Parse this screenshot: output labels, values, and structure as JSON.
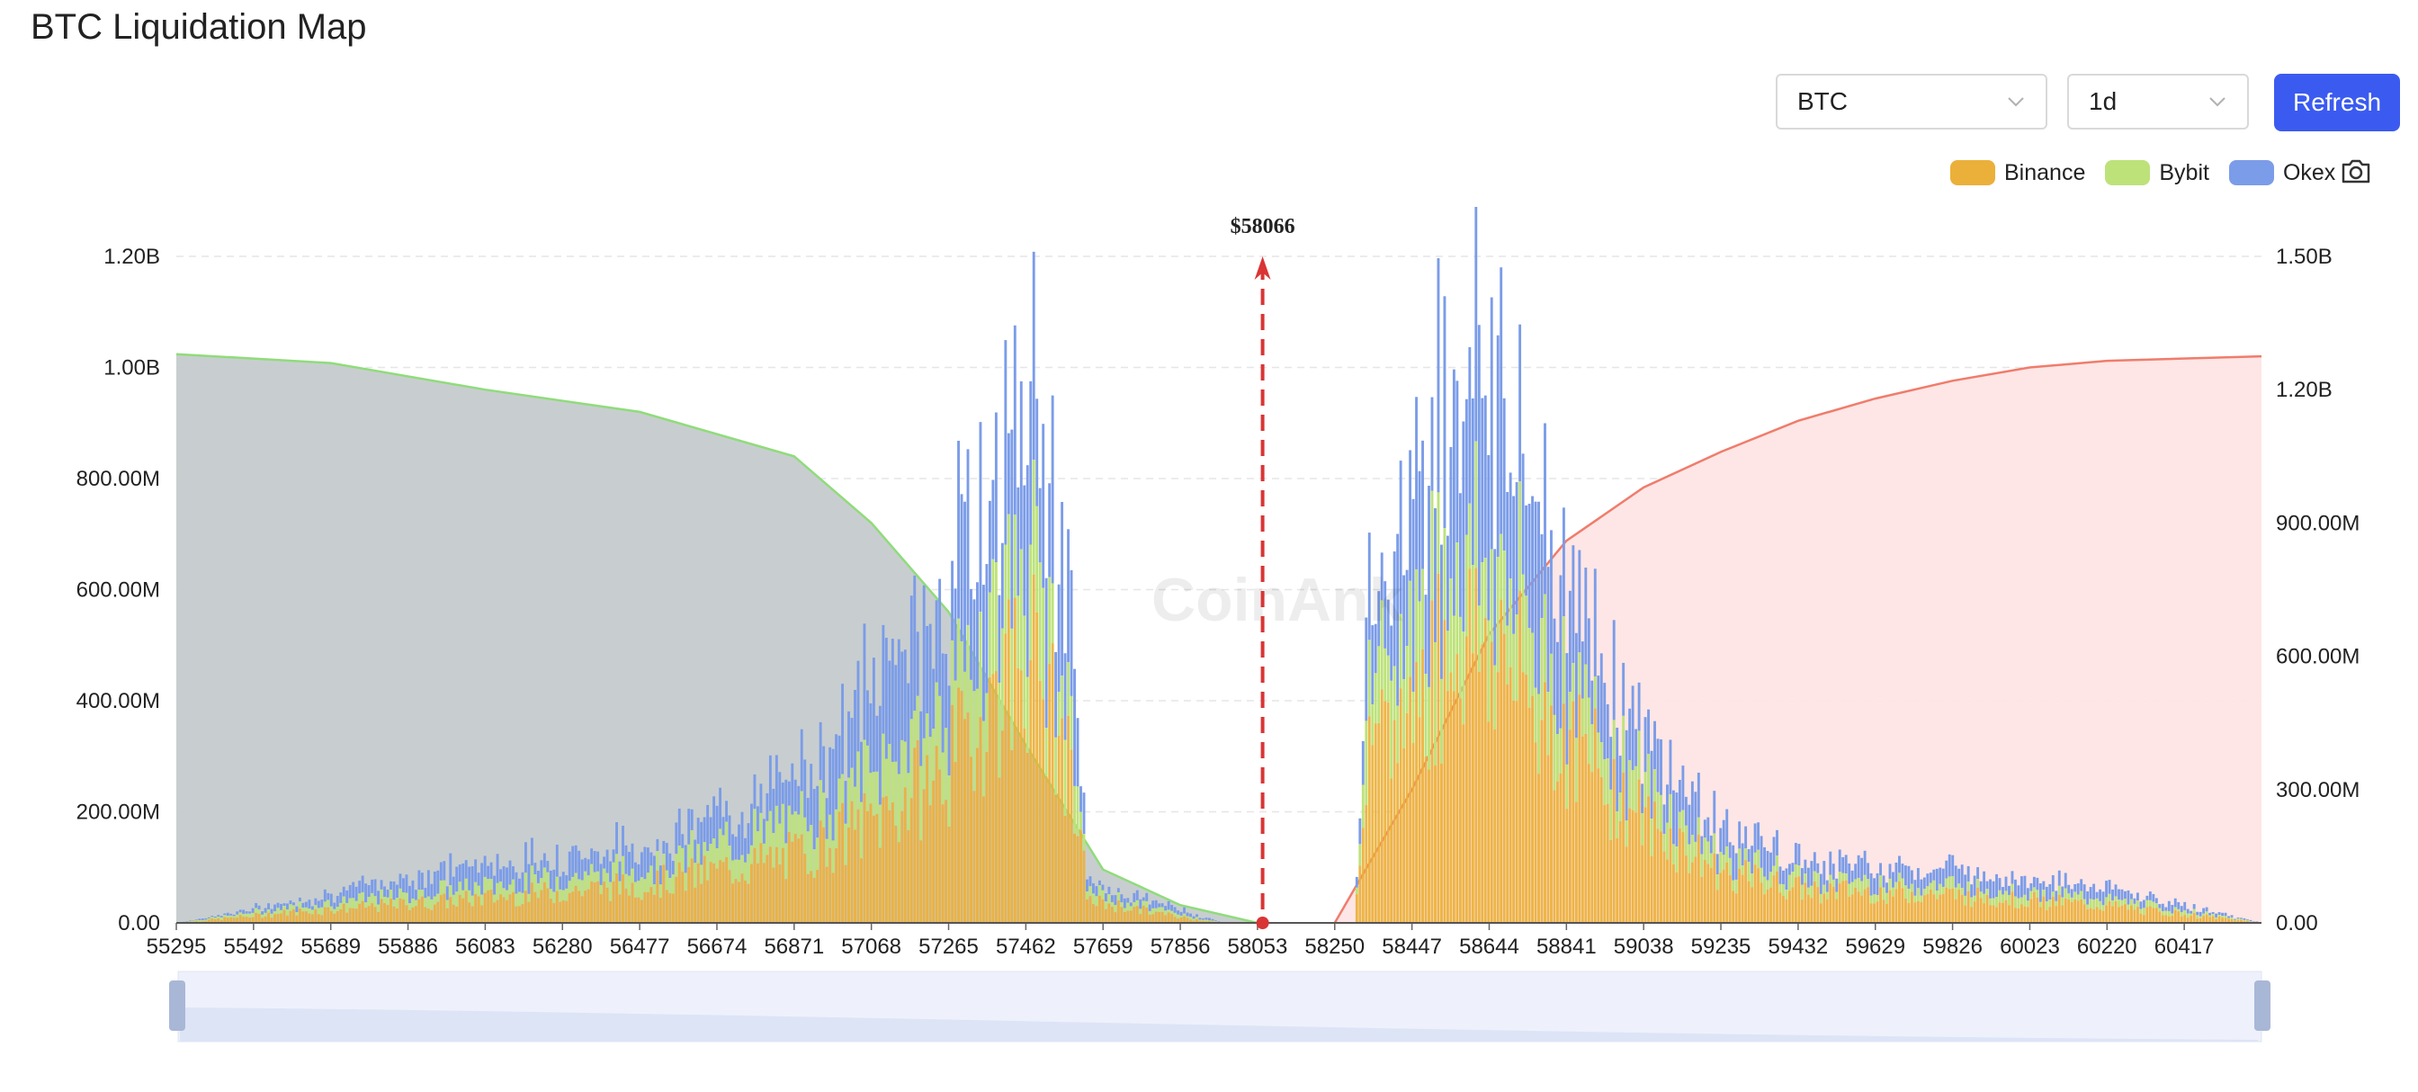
{
  "page": {
    "title": "BTC Liquidation Map"
  },
  "controls": {
    "symbol_select": {
      "value": "BTC"
    },
    "period_select": {
      "value": "1d"
    },
    "refresh_label": "Refresh"
  },
  "legend": [
    {
      "name": "Binance",
      "color": "#ebb03a"
    },
    {
      "name": "Bybit",
      "color": "#bde27a"
    },
    {
      "name": "Okex",
      "color": "#7b9ce8"
    }
  ],
  "chart_data": {
    "type": "bar",
    "title": "",
    "watermark": "CoinAnk",
    "xlabel": "",
    "ylabel": "",
    "x_tick_labels": [
      "55295",
      "55492",
      "55689",
      "55886",
      "56083",
      "56280",
      "56477",
      "56674",
      "56871",
      "57068",
      "57265",
      "57462",
      "57659",
      "57856",
      "58053",
      "58250",
      "58447",
      "58644",
      "58841",
      "59038",
      "59235",
      "59432",
      "59629",
      "59826",
      "60023",
      "60220",
      "60417"
    ],
    "x_range": [
      55295,
      60614
    ],
    "current_price": 58066,
    "current_price_label": "$58066",
    "y_left": {
      "ticks": [
        "0.00",
        "200.00M",
        "400.00M",
        "600.00M",
        "800.00M",
        "1.00B",
        "1.20B"
      ],
      "range": [
        0,
        1200000000
      ]
    },
    "y_right": {
      "ticks": [
        "0.00",
        "300.00M",
        "600.00M",
        "900.00M",
        "1.20B",
        "1.50B"
      ],
      "range": [
        0,
        1500000000
      ]
    },
    "series": [
      {
        "name": "Binance",
        "color": "#ebb03a",
        "profile": [
          [
            55295,
            0
          ],
          [
            55600,
            20000000
          ],
          [
            56000,
            40000000
          ],
          [
            56500,
            70000000
          ],
          [
            56871,
            120000000
          ],
          [
            57068,
            180000000
          ],
          [
            57265,
            280000000
          ],
          [
            57400,
            430000000
          ],
          [
            57462,
            500000000
          ],
          [
            57560,
            300000000
          ],
          [
            57620,
            40000000
          ],
          [
            57856,
            10000000
          ],
          [
            57960,
            0
          ],
          [
            58300,
            0
          ],
          [
            58320,
            250000000
          ],
          [
            58447,
            400000000
          ],
          [
            58560,
            520000000
          ],
          [
            58644,
            500000000
          ],
          [
            58750,
            400000000
          ],
          [
            58841,
            330000000
          ],
          [
            59038,
            180000000
          ],
          [
            59235,
            90000000
          ],
          [
            59432,
            60000000
          ],
          [
            59826,
            50000000
          ],
          [
            60220,
            30000000
          ],
          [
            60614,
            0
          ]
        ]
      },
      {
        "name": "Bybit",
        "color": "#bde27a",
        "profile": [
          [
            55295,
            0
          ],
          [
            55600,
            10000000
          ],
          [
            56000,
            20000000
          ],
          [
            56500,
            30000000
          ],
          [
            56871,
            60000000
          ],
          [
            57068,
            90000000
          ],
          [
            57265,
            120000000
          ],
          [
            57400,
            160000000
          ],
          [
            57462,
            170000000
          ],
          [
            57560,
            120000000
          ],
          [
            57620,
            15000000
          ],
          [
            57856,
            5000000
          ],
          [
            57960,
            0
          ],
          [
            58300,
            0
          ],
          [
            58320,
            110000000
          ],
          [
            58447,
            150000000
          ],
          [
            58560,
            170000000
          ],
          [
            58644,
            160000000
          ],
          [
            58750,
            140000000
          ],
          [
            58841,
            110000000
          ],
          [
            59038,
            60000000
          ],
          [
            59235,
            30000000
          ],
          [
            59432,
            20000000
          ],
          [
            59826,
            18000000
          ],
          [
            60220,
            12000000
          ],
          [
            60614,
            0
          ]
        ]
      },
      {
        "name": "Okex",
        "color": "#7b9ce8",
        "profile": [
          [
            55295,
            0
          ],
          [
            55600,
            10000000
          ],
          [
            56000,
            40000000
          ],
          [
            56500,
            40000000
          ],
          [
            56871,
            80000000
          ],
          [
            57068,
            150000000
          ],
          [
            57265,
            210000000
          ],
          [
            57400,
            250000000
          ],
          [
            57462,
            280000000
          ],
          [
            57560,
            220000000
          ],
          [
            57620,
            15000000
          ],
          [
            57856,
            10000000
          ],
          [
            57960,
            0
          ],
          [
            58300,
            0
          ],
          [
            58320,
            120000000
          ],
          [
            58447,
            260000000
          ],
          [
            58560,
            320000000
          ],
          [
            58644,
            350000000
          ],
          [
            58750,
            250000000
          ],
          [
            58841,
            180000000
          ],
          [
            59038,
            90000000
          ],
          [
            59235,
            50000000
          ],
          [
            59432,
            30000000
          ],
          [
            59826,
            30000000
          ],
          [
            60220,
            20000000
          ],
          [
            60614,
            0
          ]
        ]
      }
    ],
    "cumulative_short": {
      "axis": "right",
      "color": "#8fdc7a",
      "fill": "#c5cbcc",
      "points": [
        [
          55295,
          1280000000
        ],
        [
          55689,
          1260000000
        ],
        [
          56083,
          1200000000
        ],
        [
          56477,
          1150000000
        ],
        [
          56871,
          1050000000
        ],
        [
          57068,
          900000000
        ],
        [
          57265,
          700000000
        ],
        [
          57462,
          400000000
        ],
        [
          57659,
          120000000
        ],
        [
          57856,
          40000000
        ],
        [
          58053,
          0
        ]
      ]
    },
    "cumulative_long": {
      "axis": "right",
      "color": "#f07c6c",
      "fill": "#fde5e4",
      "points": [
        [
          58250,
          0
        ],
        [
          58447,
          300000000
        ],
        [
          58644,
          650000000
        ],
        [
          58841,
          860000000
        ],
        [
          59038,
          980000000
        ],
        [
          59235,
          1060000000
        ],
        [
          59432,
          1130000000
        ],
        [
          59629,
          1180000000
        ],
        [
          59826,
          1220000000
        ],
        [
          60023,
          1250000000
        ],
        [
          60220,
          1265000000
        ],
        [
          60614,
          1275000000
        ]
      ]
    },
    "grid": true,
    "legend_position": "top-right"
  }
}
